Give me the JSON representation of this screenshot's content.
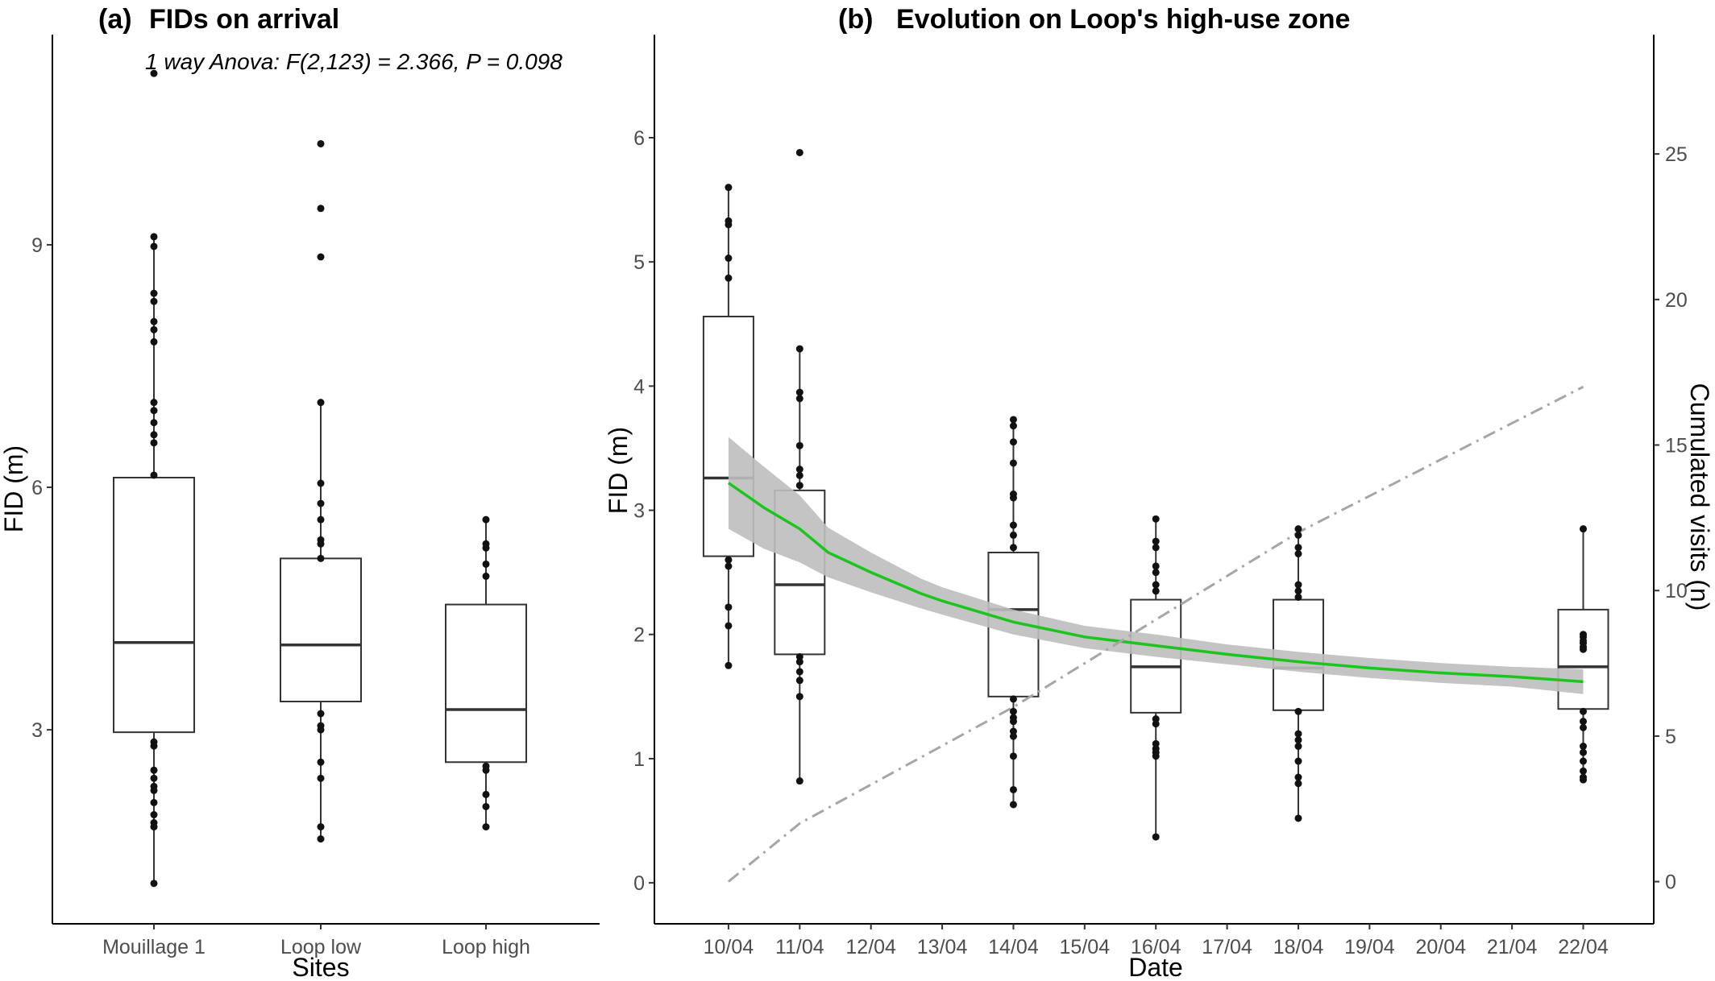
{
  "chart_data": [
    {
      "type": "box",
      "panel_label": "(a)",
      "title": "FIDs on arrival",
      "annotation": "1 way Anova: F(2,123) = 2.366,  P = 0.098",
      "xlabel": "Sites",
      "ylabel": "FID (m)",
      "ylim": [
        0.6,
        11.6
      ],
      "yticks": [
        3,
        6,
        9
      ],
      "grid": false,
      "categories": [
        "Mouillage 1",
        "Loop low",
        "Loop high"
      ],
      "boxes": [
        {
          "q1": 2.97,
          "median": 4.08,
          "q3": 6.12,
          "whisker_low": 1.1,
          "whisker_high": 9.1,
          "points": [
            11.12,
            9.1,
            8.98,
            8.4,
            8.3,
            8.05,
            7.95,
            7.8,
            7.05,
            6.95,
            6.8,
            6.65,
            6.55,
            6.15,
            2.85,
            2.8,
            2.5,
            2.4,
            2.3,
            2.25,
            2.1,
            1.95,
            1.85,
            1.8,
            1.1
          ]
        },
        {
          "q1": 3.35,
          "median": 4.05,
          "q3": 5.12,
          "whisker_low": 1.65,
          "whisker_high": 7.05,
          "points": [
            10.25,
            9.45,
            8.85,
            7.05,
            6.05,
            5.8,
            5.6,
            5.35,
            5.3,
            5.12,
            3.2,
            3.05,
            3.0,
            2.6,
            2.4,
            1.8,
            1.65
          ]
        },
        {
          "q1": 2.6,
          "median": 3.25,
          "q3": 4.55,
          "whisker_low": 1.8,
          "whisker_high": 5.6,
          "points": [
            5.6,
            5.3,
            5.25,
            5.05,
            4.9,
            2.55,
            2.5,
            2.2,
            2.05,
            1.8
          ]
        }
      ]
    },
    {
      "type": "box",
      "panel_label": "(b)",
      "title": "Evolution on Loop's high-use zone",
      "xlabel": "Date",
      "ylabel": "FID (m)",
      "ylabel_right": "Cumulated visits (n)",
      "ylim": [
        -0.33,
        6.83
      ],
      "yticks": [
        0,
        1,
        2,
        3,
        4,
        5,
        6
      ],
      "ylim_right": [
        -1.45,
        29.1
      ],
      "yticks_right": [
        0,
        5,
        10,
        15,
        20,
        25
      ],
      "grid": false,
      "xtick_labels": [
        "10/04",
        "11/04",
        "12/04",
        "13/04",
        "14/04",
        "15/04",
        "16/04",
        "17/04",
        "18/04",
        "19/04",
        "20/04",
        "21/04",
        "22/04"
      ],
      "xlim_days": [
        -1.04,
        12.99
      ],
      "boxes": [
        {
          "day": 0,
          "q1": 2.63,
          "median": 3.26,
          "q3": 4.56,
          "whisker_low": 1.75,
          "whisker_high": 5.6,
          "points": [
            5.6,
            5.33,
            5.3,
            5.03,
            4.87,
            2.6,
            2.55,
            2.22,
            2.07,
            1.75
          ]
        },
        {
          "day": 1,
          "q1": 1.84,
          "median": 2.4,
          "q3": 3.16,
          "whisker_low": 0.82,
          "whisker_high": 4.3,
          "points": [
            5.88,
            4.3,
            3.95,
            3.9,
            3.52,
            3.33,
            3.28,
            3.2,
            1.82,
            1.78,
            1.7,
            1.63,
            1.5,
            0.82
          ]
        },
        {
          "day": 4,
          "q1": 1.5,
          "median": 2.2,
          "q3": 2.66,
          "whisker_low": 0.63,
          "whisker_high": 3.73,
          "points": [
            3.73,
            3.68,
            3.55,
            3.38,
            3.13,
            3.1,
            2.88,
            2.8,
            2.7,
            1.48,
            1.38,
            1.33,
            1.3,
            1.22,
            1.18,
            1.02,
            0.75,
            0.63
          ]
        },
        {
          "day": 6,
          "q1": 1.37,
          "median": 1.74,
          "q3": 2.28,
          "whisker_low": 0.37,
          "whisker_high": 2.93,
          "points": [
            2.93,
            2.75,
            2.7,
            2.55,
            2.5,
            2.4,
            2.35,
            1.32,
            1.28,
            1.12,
            1.08,
            1.05,
            1.02,
            0.37
          ]
        },
        {
          "day": 8,
          "q1": 1.39,
          "median": 1.73,
          "q3": 2.28,
          "whisker_low": 0.52,
          "whisker_high": 2.85,
          "points": [
            2.85,
            2.8,
            2.7,
            2.65,
            2.4,
            2.35,
            2.3,
            1.38,
            1.2,
            1.15,
            1.1,
            0.98,
            0.85,
            0.8,
            0.52
          ]
        },
        {
          "day": 12,
          "q1": 1.4,
          "median": 1.74,
          "q3": 2.2,
          "whisker_low": 0.83,
          "whisker_high": 2.85,
          "points": [
            2.85,
            2.0,
            1.98,
            1.95,
            1.93,
            1.9,
            1.88,
            1.38,
            1.3,
            1.25,
            1.1,
            1.05,
            0.98,
            0.9,
            0.85,
            0.83
          ]
        }
      ],
      "smooth": {
        "color": "#1ec41e",
        "band_color": "#bebebe",
        "x_days": [
          0,
          0.5,
          1,
          1.4,
          2,
          2.7,
          3,
          4,
          5,
          6,
          7,
          8,
          9,
          10,
          11,
          12
        ],
        "y": [
          3.22,
          3.02,
          2.85,
          2.66,
          2.5,
          2.33,
          2.27,
          2.1,
          1.98,
          1.91,
          1.84,
          1.78,
          1.73,
          1.69,
          1.66,
          1.62
        ],
        "ci_halfwidth": [
          0.37,
          0.33,
          0.27,
          0.2,
          0.16,
          0.12,
          0.11,
          0.1,
          0.09,
          0.09,
          0.08,
          0.08,
          0.08,
          0.08,
          0.08,
          0.1
        ]
      },
      "cumulated_visits": {
        "color": "#a6a6a6",
        "x_days": [
          0,
          1,
          4,
          6,
          8,
          12
        ],
        "values": [
          0,
          2,
          6,
          9,
          12,
          17
        ]
      }
    }
  ]
}
